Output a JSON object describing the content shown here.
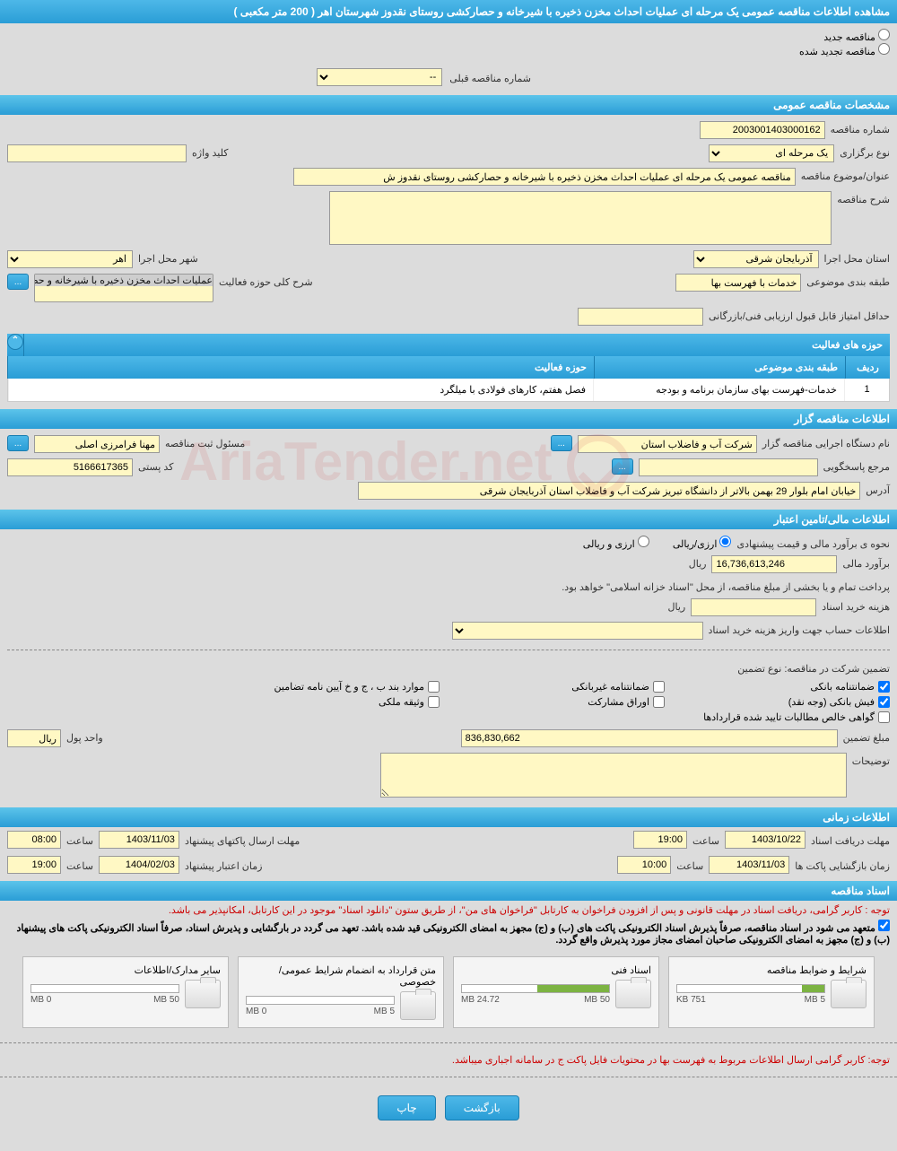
{
  "header": {
    "title": "مشاهده اطلاعات مناقصه عمومی یک مرحله ای عملیات احداث مخزن ذخیره با شیرخانه و حصارکشی روستای نقدوز شهرستان اهر ( 200 متر مکعبی )"
  },
  "radios": {
    "new_tender": "مناقصه جدید",
    "renewed_tender": "مناقصه تجدید شده"
  },
  "prev_tender": {
    "label": "شماره مناقصه قبلی",
    "value": "--"
  },
  "sections": {
    "general": "مشخصات مناقصه عمومی",
    "organizer": "اطلاعات مناقصه گزار",
    "financial": "اطلاعات مالی/تامین اعتبار",
    "timing": "اطلاعات زمانی",
    "documents": "اسناد مناقصه"
  },
  "general": {
    "tender_no_label": "شماره مناقصه",
    "tender_no": "2003001403000162",
    "holding_type_label": "نوع برگزاری",
    "holding_type": "یک مرحله ای",
    "keyword_label": "کلید واژه",
    "keyword": "",
    "subject_label": "عنوان/موضوع مناقصه",
    "subject": "مناقصه عمومی یک مرحله ای عملیات احداث مخزن ذخیره با شیرخانه و حصارکشی روستای نقدوز ش",
    "desc_label": "شرح مناقصه",
    "desc": "",
    "province_label": "استان محل اجرا",
    "province": "آذربایجان شرقی",
    "city_label": "شهر محل اجرا",
    "city": "اهر",
    "category_label": "طبقه بندی موضوعی",
    "category": "خدمات با فهرست بها",
    "activity_scope_label": "شرح کلی حوزه فعالیت",
    "activity_scope": "عملیات احداث مخزن ذخیره با شیرخانه و حصارکشی",
    "min_score_label": "حداقل امتیاز قابل قبول ارزیابی فنی/بازرگانی",
    "min_score": ""
  },
  "activity_table": {
    "title": "حوزه های فعالیت",
    "col_row": "ردیف",
    "col_category": "طبقه بندی موضوعی",
    "col_scope": "حوزه فعالیت",
    "rows": [
      {
        "n": "1",
        "cat": "خدمات-فهرست بهای سازمان برنامه و بودجه",
        "scope": "فصل هفتم، کارهای فولادی با میلگرد"
      }
    ]
  },
  "organizer": {
    "org_label": "نام دستگاه اجرایی مناقصه گزار",
    "org": "شرکت آب و فاضلاب استان",
    "reg_label": "مسئول ثبت مناقصه",
    "reg": "مهنا فرامرزی اصلی",
    "resp_label": "مرجع پاسخگویی",
    "resp": "",
    "postal_label": "کد پستی",
    "postal": "5166617365",
    "address_label": "آدرس",
    "address": "خیابان امام بلوار 29 بهمن بالاتر از دانشگاه تبریز شرکت آب و فاضلاب استان آذربایجان شرقی"
  },
  "financial": {
    "method_label": "نحوه ی برآورد مالی و قیمت پیشنهادی",
    "opt_rial": "ارزی/ریالی",
    "opt_both": "ارزی و ریالی",
    "estimate_label": "برآورد مالی",
    "estimate": "16,736,613,246",
    "unit": "ریال",
    "payment_note": "پرداخت تمام و یا بخشی از مبلغ مناقصه، از محل \"اسناد خزانه اسلامی\" خواهد بود.",
    "doc_cost_label": "هزینه خرید اسناد",
    "doc_cost": "",
    "account_label": "اطلاعات حساب جهت واریز هزینه خرید اسناد",
    "guarantee_label": "تضمین شرکت در مناقصه:   نوع تضمین",
    "g_bank": "ضمانتنامه بانکی",
    "g_nonbank": "ضمانتنامه غیربانکی",
    "g_bond": "موارد بند ب ، ج و خ آیین نامه تضامین",
    "g_cash": "فیش بانکی (وجه نقد)",
    "g_securities": "اوراق مشارکت",
    "g_deed": "وثیقه ملکی",
    "g_net": "گواهی خالص مطالبات تایید شده قراردادها",
    "amount_label": "مبلغ تضمین",
    "amount": "836,830,662",
    "currency_label": "واحد پول",
    "currency": "ریال",
    "notes_label": "توضیحات",
    "notes": ""
  },
  "timing": {
    "receive_deadline_label": "مهلت دریافت اسناد",
    "receive_date": "1403/10/22",
    "receive_time_label": "ساعت",
    "receive_time": "19:00",
    "send_deadline_label": "مهلت ارسال پاکتهای پیشنهاد",
    "send_date": "1403/11/03",
    "send_time_label": "ساعت",
    "send_time": "08:00",
    "open_label": "زمان بازگشایی پاکت ها",
    "open_date": "1403/11/03",
    "open_time_label": "ساعت",
    "open_time": "10:00",
    "validity_label": "زمان اعتبار پیشنهاد",
    "validity_date": "1404/02/03",
    "validity_time_label": "ساعت",
    "validity_time": "19:00"
  },
  "documents": {
    "note1": "توجه : کاربر گرامی، دریافت اسناد در مهلت قانونی و پس از افزودن فراخوان به کارتابل \"فراخوان های من\"، از طریق ستون \"دانلود اسناد\" موجود در این کارتابل، امکانپذیر می باشد.",
    "note2": "متعهد می شود در اسناد مناقصه، صرفاً پذیرش اسناد الکترونیکی پاکت های (ب) و (ج) مجهز به امضای الکترونیکی قید شده باشد. تعهد می گردد در بارگشایی و پذیرش اسناد، صرفاً اسناد الکترونیکی پاکت های پیشنهاد (ب) و (ج) مجهز به امضای الکترونیکی صاحبان امضای مجاز مورد پذیرش واقع گردد.",
    "cards": [
      {
        "title": "شرایط و ضوابط مناقصه",
        "used": "751 KB",
        "total": "5 MB",
        "pct": 15
      },
      {
        "title": "اسناد فنی",
        "used": "24.72 MB",
        "total": "50 MB",
        "pct": 49
      },
      {
        "title": "متن قرارداد به انضمام شرایط عمومی/خصوصی",
        "used": "0 MB",
        "total": "5 MB",
        "pct": 0
      },
      {
        "title": "سایر مدارک/اطلاعات",
        "used": "0 MB",
        "total": "50 MB",
        "pct": 0
      }
    ],
    "footer_note": "توجه: کاربر گرامی ارسال اطلاعات مربوط به فهرست بها در محتویات فایل پاکت ج در سامانه اجباری میباشد."
  },
  "buttons": {
    "back": "بازگشت",
    "print": "چاپ"
  },
  "colors": {
    "header_grad_top": "#4db8e8",
    "header_grad_bot": "#2a9dd6",
    "field_bg": "#fff8c4",
    "page_bg": "#dcdcdc",
    "progress_fill": "#7cb342",
    "note_red": "#cc0000"
  }
}
